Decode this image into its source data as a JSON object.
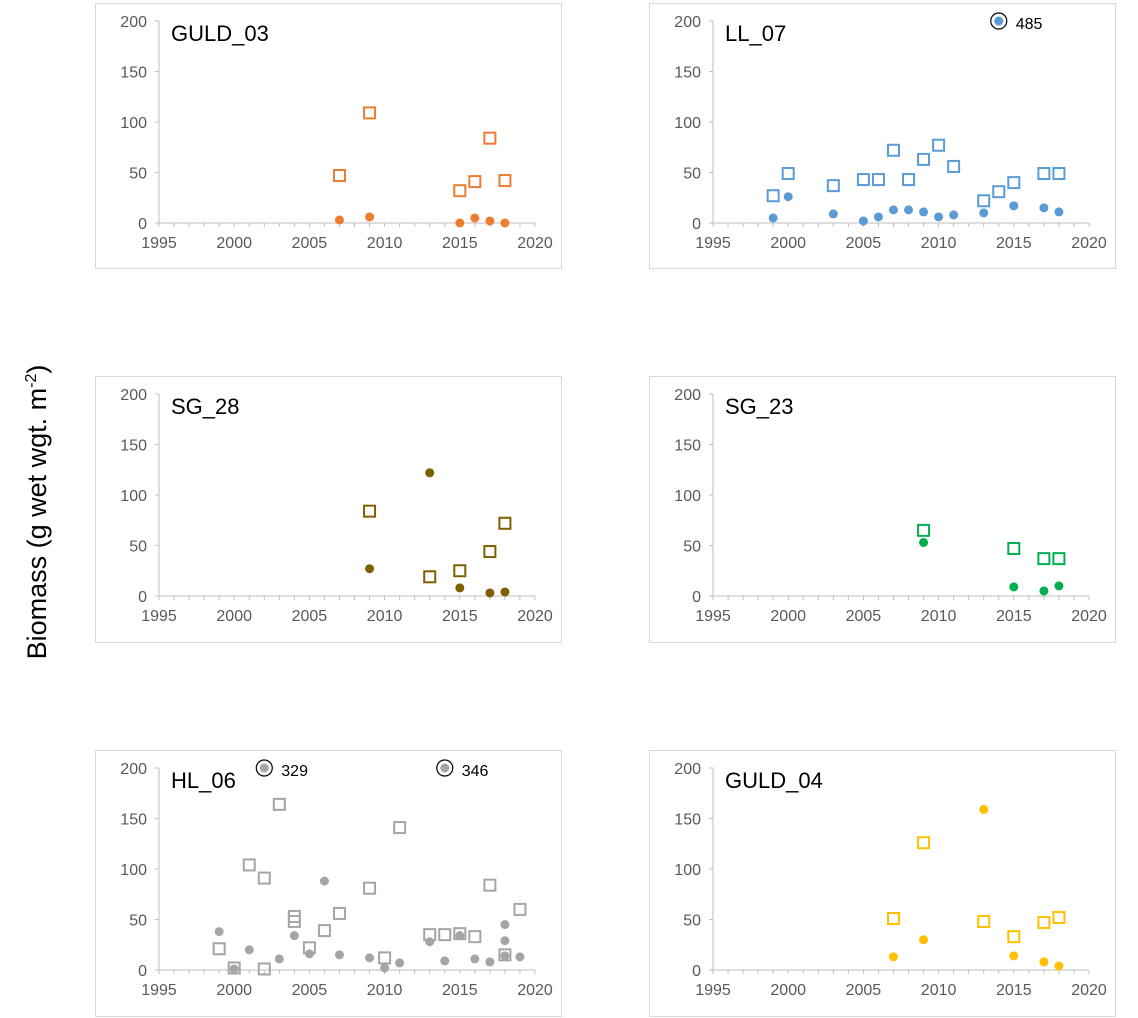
{
  "figure": {
    "ylabel": "Biomass (g wet wgt. m",
    "ylabel_sup": "-2",
    "ylabel_close": ")"
  },
  "chart_data": [
    {
      "type": "scatter",
      "title": "GULD_03",
      "color": "#ED7D31",
      "xlim": [
        1995,
        2020
      ],
      "ylim": [
        0,
        200
      ],
      "xticks": [
        1995,
        2000,
        2005,
        2010,
        2015,
        2020
      ],
      "yticks": [
        0,
        50,
        100,
        150,
        200
      ],
      "series": [
        {
          "marker": "open-square",
          "points": [
            [
              2007,
              47
            ],
            [
              2009,
              109
            ],
            [
              2015,
              32
            ],
            [
              2016,
              41
            ],
            [
              2017,
              84
            ],
            [
              2018,
              42
            ]
          ]
        },
        {
          "marker": "filled-circle",
          "points": [
            [
              2007,
              3
            ],
            [
              2009,
              6
            ],
            [
              2015,
              0
            ],
            [
              2016,
              5
            ],
            [
              2017,
              2
            ],
            [
              2018,
              0
            ]
          ]
        }
      ],
      "annotations": []
    },
    {
      "type": "scatter",
      "title": "LL_07",
      "color": "#5B9BD5",
      "xlim": [
        1995,
        2020
      ],
      "ylim": [
        0,
        200
      ],
      "xticks": [
        1995,
        2000,
        2005,
        2010,
        2015,
        2020
      ],
      "yticks": [
        0,
        50,
        100,
        150,
        200
      ],
      "series": [
        {
          "marker": "open-square",
          "points": [
            [
              1999,
              27
            ],
            [
              2000,
              49
            ],
            [
              2003,
              37
            ],
            [
              2005,
              43
            ],
            [
              2006,
              43
            ],
            [
              2007,
              72
            ],
            [
              2008,
              43
            ],
            [
              2009,
              63
            ],
            [
              2010,
              77
            ],
            [
              2011,
              56
            ],
            [
              2013,
              22
            ],
            [
              2014,
              31
            ],
            [
              2015,
              40
            ],
            [
              2017,
              49
            ],
            [
              2018,
              49
            ]
          ]
        },
        {
          "marker": "filled-circle",
          "points": [
            [
              1999,
              5
            ],
            [
              2000,
              26
            ],
            [
              2003,
              9
            ],
            [
              2005,
              2
            ],
            [
              2006,
              6
            ],
            [
              2007,
              13
            ],
            [
              2008,
              13
            ],
            [
              2009,
              11
            ],
            [
              2010,
              6
            ],
            [
              2011,
              8
            ],
            [
              2013,
              10
            ],
            [
              2014,
              200
            ],
            [
              2015,
              17
            ],
            [
              2017,
              15
            ],
            [
              2018,
              11
            ]
          ]
        }
      ],
      "annotations": [
        {
          "x": 2014,
          "y": 200,
          "label": "485"
        }
      ]
    },
    {
      "type": "scatter",
      "title": "SG_28",
      "color": "#7F6000",
      "xlim": [
        1995,
        2020
      ],
      "ylim": [
        0,
        200
      ],
      "xticks": [
        1995,
        2000,
        2005,
        2010,
        2015,
        2020
      ],
      "yticks": [
        0,
        50,
        100,
        150,
        200
      ],
      "series": [
        {
          "marker": "open-square",
          "points": [
            [
              2009,
              84
            ],
            [
              2013,
              19
            ],
            [
              2015,
              25
            ],
            [
              2017,
              44
            ],
            [
              2018,
              72
            ]
          ]
        },
        {
          "marker": "filled-circle",
          "points": [
            [
              2009,
              27
            ],
            [
              2013,
              122
            ],
            [
              2015,
              8
            ],
            [
              2017,
              3
            ],
            [
              2018,
              4
            ]
          ]
        }
      ],
      "annotations": []
    },
    {
      "type": "scatter",
      "title": "SG_23",
      "color": "#00B050",
      "xlim": [
        1995,
        2020
      ],
      "ylim": [
        0,
        200
      ],
      "xticks": [
        1995,
        2000,
        2005,
        2010,
        2015,
        2020
      ],
      "yticks": [
        0,
        50,
        100,
        150,
        200
      ],
      "series": [
        {
          "marker": "open-square",
          "points": [
            [
              2009,
              65
            ],
            [
              2015,
              47
            ],
            [
              2017,
              37
            ],
            [
              2018,
              37
            ]
          ]
        },
        {
          "marker": "filled-circle",
          "points": [
            [
              2009,
              53
            ],
            [
              2015,
              9
            ],
            [
              2017,
              5
            ],
            [
              2018,
              10
            ]
          ]
        }
      ],
      "annotations": []
    },
    {
      "type": "scatter",
      "title": "HL_06",
      "color": "#A5A5A5",
      "xlim": [
        1995,
        2020
      ],
      "ylim": [
        0,
        200
      ],
      "xticks": [
        1995,
        2000,
        2005,
        2010,
        2015,
        2020
      ],
      "yticks": [
        0,
        50,
        100,
        150,
        200
      ],
      "series": [
        {
          "marker": "open-square",
          "points": [
            [
              1999,
              21
            ],
            [
              2000,
              2
            ],
            [
              2001,
              104
            ],
            [
              2002,
              91
            ],
            [
              2002,
              1
            ],
            [
              2003,
              164
            ],
            [
              2004,
              48
            ],
            [
              2004,
              53
            ],
            [
              2005,
              22
            ],
            [
              2006,
              39
            ],
            [
              2007,
              56
            ],
            [
              2009,
              81
            ],
            [
              2010,
              12
            ],
            [
              2011,
              141
            ],
            [
              2013,
              35
            ],
            [
              2014,
              35
            ],
            [
              2015,
              36
            ],
            [
              2016,
              33
            ],
            [
              2017,
              84
            ],
            [
              2018,
              15
            ],
            [
              2019,
              60
            ]
          ]
        },
        {
          "marker": "filled-circle",
          "points": [
            [
              1999,
              38
            ],
            [
              2000,
              1
            ],
            [
              2001,
              20
            ],
            [
              2002,
              200
            ],
            [
              2003,
              11
            ],
            [
              2004,
              34
            ],
            [
              2005,
              16
            ],
            [
              2006,
              88
            ],
            [
              2007,
              15
            ],
            [
              2009,
              12
            ],
            [
              2010,
              2
            ],
            [
              2011,
              7
            ],
            [
              2013,
              28
            ],
            [
              2014,
              200
            ],
            [
              2014,
              9
            ],
            [
              2015,
              34
            ],
            [
              2016,
              11
            ],
            [
              2017,
              8
            ],
            [
              2018,
              45
            ],
            [
              2018,
              29
            ],
            [
              2018,
              14
            ],
            [
              2019,
              13
            ]
          ]
        }
      ],
      "annotations": [
        {
          "x": 2002,
          "y": 200,
          "label": "329"
        },
        {
          "x": 2014,
          "y": 200,
          "label": "346"
        }
      ]
    },
    {
      "type": "scatter",
      "title": "GULD_04",
      "color": "#FFC000",
      "xlim": [
        1995,
        2020
      ],
      "ylim": [
        0,
        200
      ],
      "xticks": [
        1995,
        2000,
        2005,
        2010,
        2015,
        2020
      ],
      "yticks": [
        0,
        50,
        100,
        150,
        200
      ],
      "series": [
        {
          "marker": "open-square",
          "points": [
            [
              2007,
              51
            ],
            [
              2009,
              126
            ],
            [
              2013,
              48
            ],
            [
              2015,
              33
            ],
            [
              2017,
              47
            ],
            [
              2018,
              52
            ]
          ]
        },
        {
          "marker": "filled-circle",
          "points": [
            [
              2007,
              13
            ],
            [
              2009,
              30
            ],
            [
              2013,
              159
            ],
            [
              2015,
              14
            ],
            [
              2017,
              8
            ],
            [
              2018,
              4
            ]
          ]
        }
      ],
      "annotations": []
    }
  ]
}
